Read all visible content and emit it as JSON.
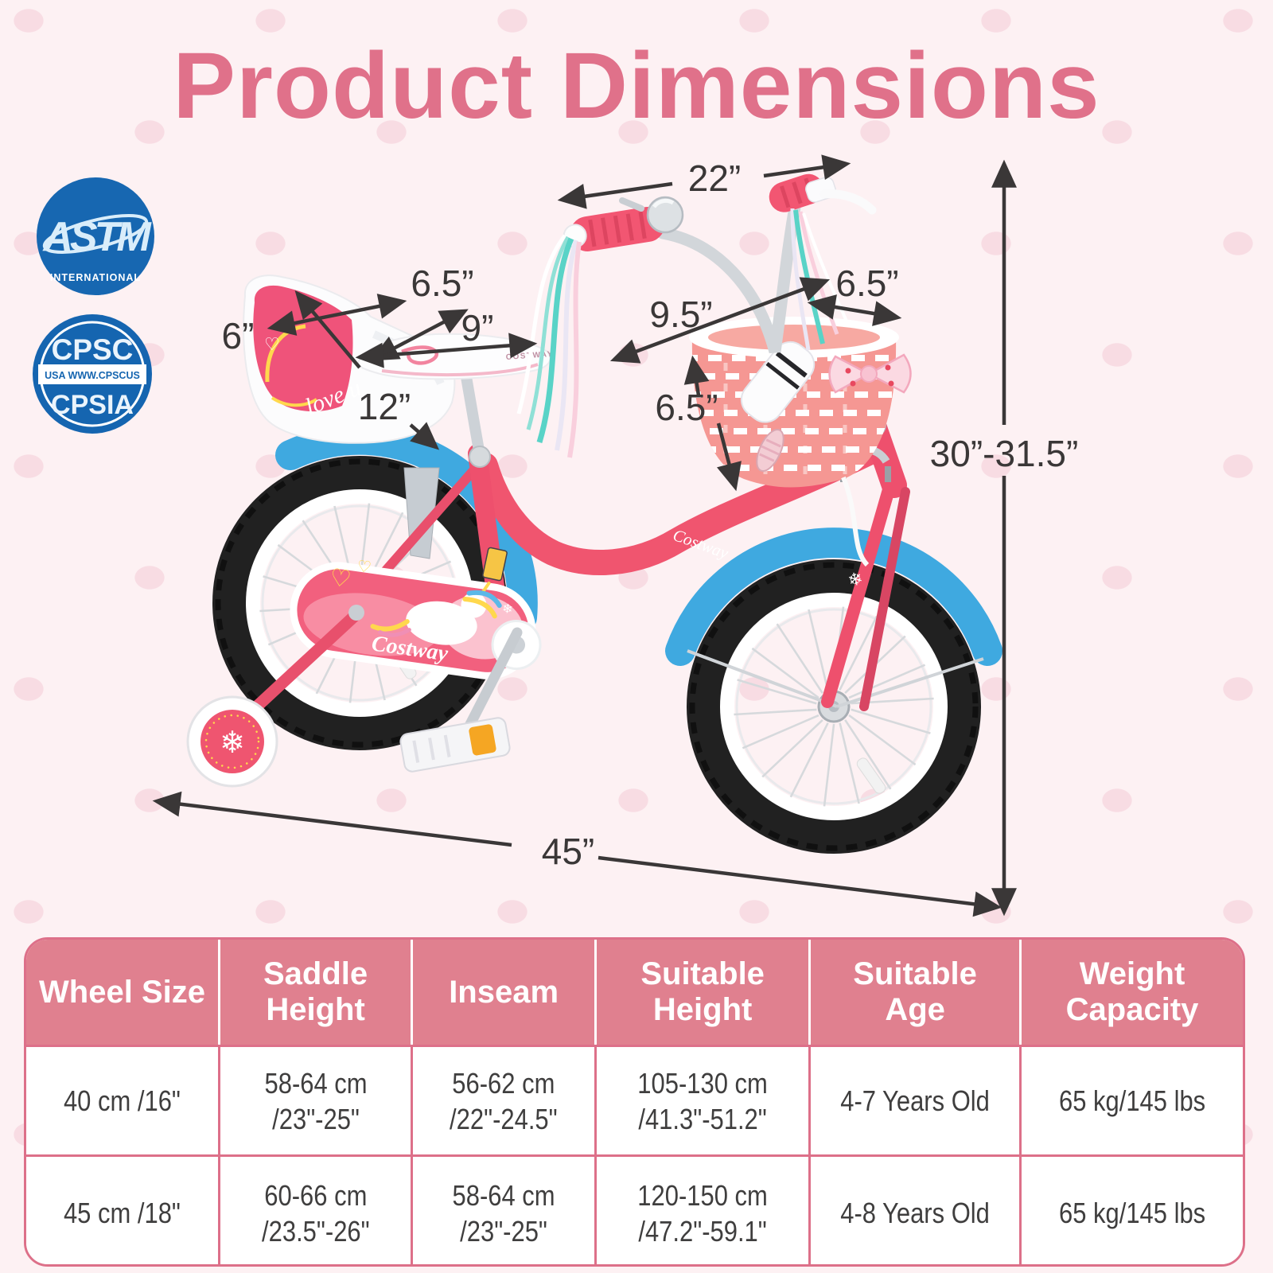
{
  "page": {
    "title": "Product Dimensions"
  },
  "badges": {
    "astm": {
      "title": "ASTM",
      "subtitle": "INTERNATIONAL"
    },
    "cpsc": {
      "line1": "CPSC",
      "line2": "USA  WWW.CPSCUS",
      "line3": "CPSIA"
    }
  },
  "dimensions": {
    "handlebar_width": "22”",
    "doll_seat_back_width": "6”",
    "saddle_width": "6.5”",
    "saddle_length": "9”",
    "doll_seat_length": "12”",
    "basket_length": "9.5”",
    "basket_top_width": "6.5”",
    "basket_height": "6.5”",
    "handlebar_height": "30”-31.5”",
    "overall_length": "45”"
  },
  "bike": {
    "frame_logo": "Costway",
    "chain_guard_logo": "Costway",
    "saddle_logo": "COSTWAY",
    "doll_seat_text": "love u"
  },
  "table": {
    "headers": [
      "Wheel Size",
      "Saddle Height",
      "Inseam",
      "Suitable Height",
      "Suitable Age",
      "Weight Capacity"
    ],
    "rows": [
      [
        "40 cm /16\"",
        "58-64 cm\n/23\"-25\"",
        "56-62 cm\n/22\"-24.5\"",
        "105-130 cm\n/41.3\"-51.2\"",
        "4-7 Years Old",
        "65 kg/145 lbs"
      ],
      [
        "45 cm /18\"",
        "60-66 cm\n/23.5\"-26\"",
        "58-64 cm\n/23\"-25\"",
        "120-150 cm\n/47.2\"-59.1\"",
        "4-8 Years Old",
        "65 kg/145 lbs"
      ]
    ]
  }
}
